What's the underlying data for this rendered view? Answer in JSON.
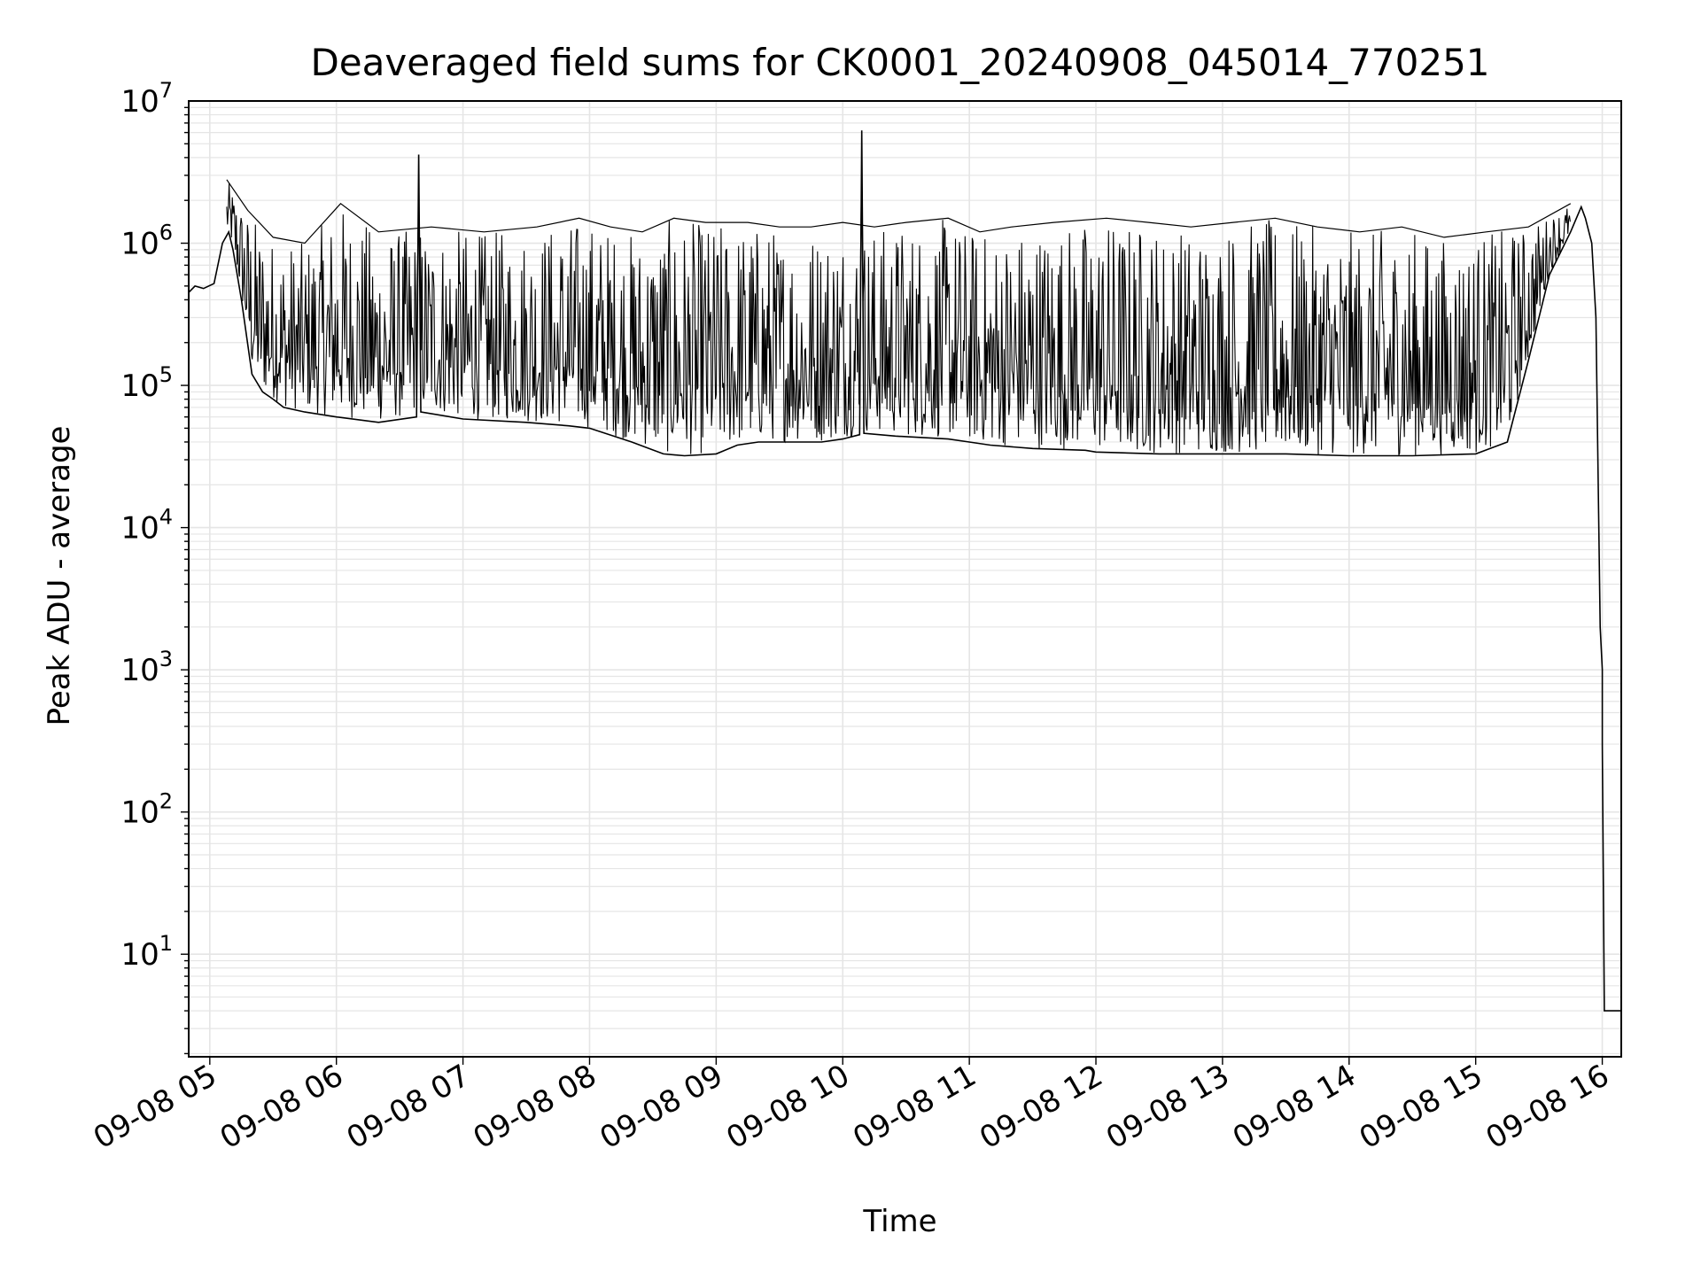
{
  "chart_data": {
    "type": "line",
    "title": "Deaveraged field sums for CK0001_20240908_045014_770251",
    "xlabel": "Time",
    "ylabel": "Peak ADU - average",
    "x_scale": "time",
    "y_scale": "log",
    "xlim": [
      "09-08 04:50",
      "09-08 16:09"
    ],
    "ylim": [
      1.9,
      10000000
    ],
    "xticks": [
      {
        "label": "09-08 05",
        "value": "09-08 05:00"
      },
      {
        "label": "09-08 06",
        "value": "09-08 06:00"
      },
      {
        "label": "09-08 07",
        "value": "09-08 07:00"
      },
      {
        "label": "09-08 08",
        "value": "09-08 08:00"
      },
      {
        "label": "09-08 09",
        "value": "09-08 09:00"
      },
      {
        "label": "09-08 10",
        "value": "09-08 10:00"
      },
      {
        "label": "09-08 11",
        "value": "09-08 11:00"
      },
      {
        "label": "09-08 12",
        "value": "09-08 12:00"
      },
      {
        "label": "09-08 13",
        "value": "09-08 13:00"
      },
      {
        "label": "09-08 14",
        "value": "09-08 14:00"
      },
      {
        "label": "09-08 15",
        "value": "09-08 15:00"
      },
      {
        "label": "09-08 16",
        "value": "09-08 16:00"
      }
    ],
    "yticks": [
      {
        "base": "10",
        "exp": "1",
        "value": 10
      },
      {
        "base": "10",
        "exp": "2",
        "value": 100
      },
      {
        "base": "10",
        "exp": "3",
        "value": 1000
      },
      {
        "base": "10",
        "exp": "4",
        "value": 10000
      },
      {
        "base": "10",
        "exp": "5",
        "value": 100000
      },
      {
        "base": "10",
        "exp": "6",
        "value": 1000000
      },
      {
        "base": "10",
        "exp": "7",
        "value": 10000000
      }
    ],
    "grid": true,
    "grid_color": "#e5e5e5",
    "line_color": "#000000",
    "series": [
      {
        "x": [
          "09-08 04:50",
          "09-08 04:53",
          "09-08 04:57",
          "09-08 05:02",
          "09-08 05:06",
          "09-08 05:09",
          "09-08 05:11",
          "09-08 05:15",
          "09-08 05:20",
          "09-08 05:25",
          "09-08 05:30",
          "09-08 05:35",
          "09-08 05:45",
          "09-08 06:00",
          "09-08 06:20",
          "09-08 06:38",
          "09-08 06:39",
          "09-08 06:40",
          "09-08 07:00",
          "09-08 07:30",
          "09-08 07:50",
          "09-08 08:00",
          "09-08 08:20",
          "09-08 08:35",
          "09-08 08:45",
          "09-08 09:00",
          "09-08 09:10",
          "09-08 09:20",
          "09-08 09:35",
          "09-08 09:50",
          "09-08 10:00",
          "09-08 10:08",
          "09-08 10:09",
          "09-08 10:10",
          "09-08 10:25",
          "09-08 10:50",
          "09-08 11:00",
          "09-08 11:10",
          "09-08 11:30",
          "09-08 11:55",
          "09-08 12:00",
          "09-08 12:30",
          "09-08 13:00",
          "09-08 13:30",
          "09-08 14:00",
          "09-08 14:30",
          "09-08 15:00",
          "09-08 15:15",
          "09-08 15:25",
          "09-08 15:35",
          "09-08 15:45",
          "09-08 15:50",
          "09-08 15:52",
          "09-08 15:55",
          "09-08 15:57",
          "09-08 15:59",
          "09-08 16:00",
          "09-08 16:00",
          "09-08 16:01",
          "09-08 16:09"
        ],
        "y": [
          450000,
          500000,
          480000,
          520000,
          1000000,
          1200000,
          900000,
          400000,
          120000,
          90000,
          80000,
          70000,
          65000,
          60000,
          55000,
          60000,
          4200000,
          65000,
          58000,
          55000,
          52000,
          50000,
          40000,
          33000,
          32000,
          33000,
          38000,
          40000,
          40000,
          40000,
          42000,
          45000,
          6200000,
          46000,
          44000,
          42000,
          40000,
          38000,
          36000,
          35000,
          34000,
          33000,
          33000,
          33000,
          32000,
          32000,
          33000,
          40000,
          150000,
          600000,
          1200000,
          1800000,
          1500000,
          1000000,
          300000,
          2000,
          1000,
          300,
          4,
          4
        ]
      },
      {
        "x": [
          "09-08 05:08",
          "09-08 05:18",
          "09-08 05:30",
          "09-08 05:45",
          "09-08 06:02",
          "09-08 06:20",
          "09-08 06:45",
          "09-08 07:10",
          "09-08 07:35",
          "09-08 07:55",
          "09-08 08:10",
          "09-08 08:25",
          "09-08 08:40",
          "09-08 08:55",
          "09-08 09:15",
          "09-08 09:30",
          "09-08 09:45",
          "09-08 10:00",
          "09-08 10:15",
          "09-08 10:30",
          "09-08 10:50",
          "09-08 11:05",
          "09-08 11:20",
          "09-08 11:40",
          "09-08 12:05",
          "09-08 12:25",
          "09-08 12:45",
          "09-08 13:05",
          "09-08 13:25",
          "09-08 13:45",
          "09-08 14:05",
          "09-08 14:25",
          "09-08 14:45",
          "09-08 15:05",
          "09-08 15:25",
          "09-08 15:45"
        ],
        "y": [
          2800000,
          1700000,
          1100000,
          1000000,
          1900000,
          1200000,
          1300000,
          1200000,
          1300000,
          1500000,
          1300000,
          1200000,
          1500000,
          1400000,
          1400000,
          1300000,
          1300000,
          1400000,
          1300000,
          1400000,
          1500000,
          1200000,
          1300000,
          1400000,
          1500000,
          1400000,
          1300000,
          1400000,
          1500000,
          1300000,
          1200000,
          1300000,
          1100000,
          1200000,
          1300000,
          1900000
        ]
      }
    ]
  }
}
